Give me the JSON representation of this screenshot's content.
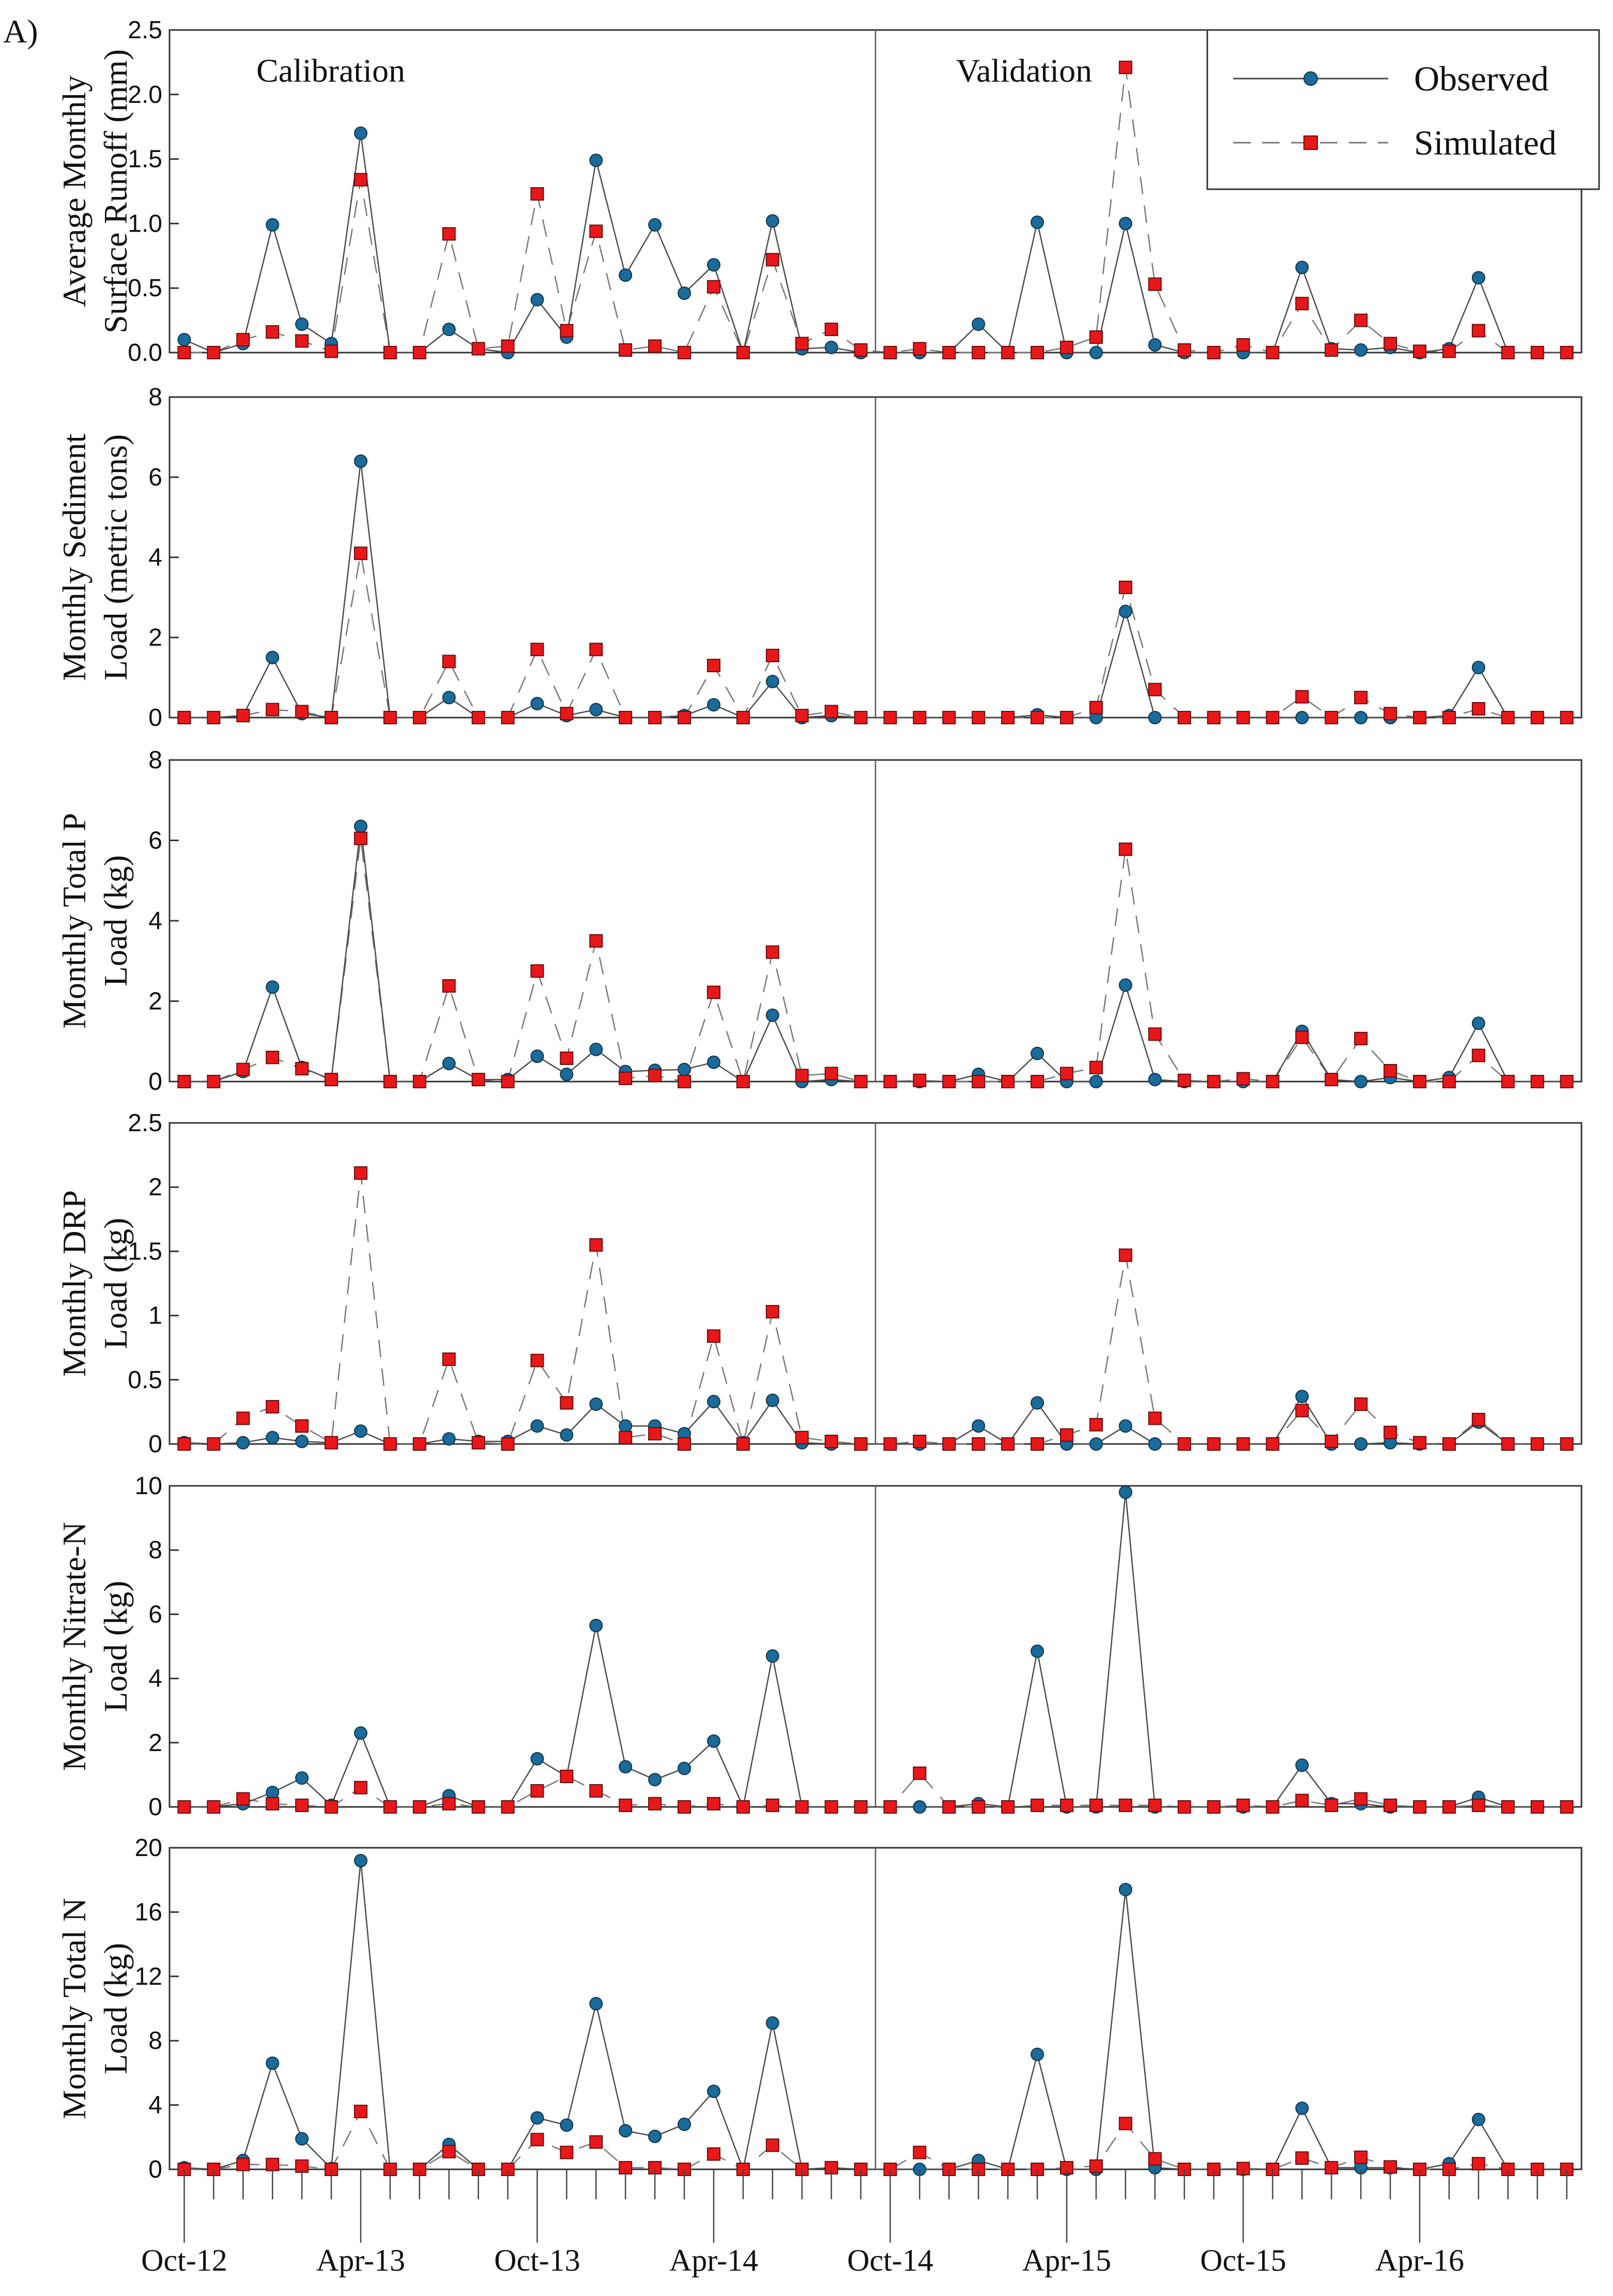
{
  "figure_label": "A)",
  "legend": {
    "observed": "Observed",
    "simulated": "Simulated"
  },
  "regions": {
    "calibration": "Calibration",
    "validation": "Validation"
  },
  "x_tick_labels": [
    "Oct-12",
    "Apr-13",
    "Oct-13",
    "Apr-14",
    "Oct-14",
    "Apr-15",
    "Oct-15",
    "Apr-16"
  ],
  "colors": {
    "observed": "#1a6a9a",
    "simulated": "#e8181a",
    "axis": "#333333"
  },
  "chart_data": [
    {
      "type": "line",
      "ylabel_lines": [
        "Average Monthly",
        "Surface Runoff (mm)"
      ],
      "ylim": [
        0,
        2.5
      ],
      "yticks": [
        "0.0",
        "0.5",
        "1.0",
        "1.5",
        "2.0",
        "2.5"
      ],
      "ytick_values": [
        0,
        0.5,
        1.0,
        1.5,
        2.0,
        2.5
      ],
      "series": [
        {
          "name": "Observed",
          "values": [
            0.1,
            0,
            0.07,
            0.99,
            0.22,
            0.07,
            1.7,
            0,
            0,
            0.18,
            0.03,
            0,
            0.41,
            0.12,
            1.49,
            0.6,
            0.99,
            0.46,
            0.68,
            0,
            1.02,
            0.03,
            0.04,
            0,
            0,
            0,
            0,
            0.22,
            0,
            1.01,
            0,
            0,
            1.0,
            0.06,
            0,
            0,
            0,
            0,
            0.66,
            0.03,
            0.02,
            0.04,
            0,
            0.03,
            0.58,
            0,
            0,
            0
          ]
        },
        {
          "name": "Simulated",
          "values": [
            0,
            0,
            0.1,
            0.16,
            0.09,
            0.01,
            1.34,
            0,
            0,
            0.92,
            0.03,
            0.05,
            1.23,
            0.17,
            0.94,
            0.02,
            0.05,
            0,
            0.51,
            0,
            0.72,
            0.07,
            0.18,
            0.02,
            0,
            0.03,
            0,
            0,
            0,
            0,
            0.04,
            0.12,
            2.21,
            0.53,
            0.02,
            0,
            0.06,
            0,
            0.38,
            0.02,
            0.25,
            0.07,
            0.01,
            0.01,
            0.17,
            0,
            0,
            0
          ]
        }
      ]
    },
    {
      "type": "line",
      "ylabel_lines": [
        "Monthly Sediment",
        "Load (metric tons)"
      ],
      "ylim": [
        0,
        8
      ],
      "yticks": [
        "0",
        "2",
        "4",
        "6",
        "8"
      ],
      "ytick_values": [
        0,
        2,
        4,
        6,
        8
      ],
      "series": [
        {
          "name": "Observed",
          "values": [
            0,
            0,
            0.05,
            1.5,
            0.1,
            0,
            6.4,
            0,
            0,
            0.5,
            0,
            0,
            0.35,
            0.05,
            0.2,
            0,
            0,
            0.05,
            0.32,
            0,
            0.9,
            0,
            0.05,
            0,
            0,
            0,
            0,
            0,
            0,
            0.07,
            0,
            0,
            2.65,
            0,
            0,
            0,
            0,
            0,
            0,
            0,
            0,
            0,
            0,
            0.05,
            1.25,
            0,
            0,
            0
          ]
        },
        {
          "name": "Simulated",
          "values": [
            0,
            0,
            0.05,
            0.2,
            0.15,
            0,
            4.1,
            0,
            0,
            1.4,
            0,
            0,
            1.7,
            0.1,
            1.7,
            0,
            0,
            0,
            1.3,
            0,
            1.55,
            0.05,
            0.15,
            0,
            0,
            0,
            0,
            0,
            0,
            0,
            0,
            0.25,
            3.25,
            0.7,
            0,
            0,
            0,
            0,
            0.52,
            0,
            0.5,
            0.1,
            0,
            0,
            0.22,
            0,
            0,
            0
          ]
        }
      ]
    },
    {
      "type": "line",
      "ylabel_lines": [
        "Monthly Total P",
        "Load (kg)"
      ],
      "ylim": [
        0,
        8
      ],
      "yticks": [
        "0",
        "2",
        "4",
        "6",
        "8"
      ],
      "ytick_values": [
        0,
        2,
        4,
        6,
        8
      ],
      "series": [
        {
          "name": "Observed",
          "values": [
            0,
            0,
            0.25,
            2.35,
            0.35,
            0.05,
            6.35,
            0,
            0,
            0.45,
            0.05,
            0.05,
            0.63,
            0.18,
            0.8,
            0.25,
            0.28,
            0.3,
            0.48,
            0,
            1.65,
            0,
            0.05,
            0,
            0,
            0,
            0,
            0.18,
            0,
            0.7,
            0,
            0,
            2.4,
            0.05,
            0,
            0,
            0,
            0,
            1.25,
            0.05,
            0,
            0.1,
            0,
            0.1,
            1.45,
            0,
            0,
            0
          ]
        },
        {
          "name": "Simulated",
          "values": [
            0,
            0,
            0.3,
            0.6,
            0.32,
            0.05,
            6.05,
            0,
            0,
            2.38,
            0.05,
            0,
            2.75,
            0.58,
            3.5,
            0.08,
            0.15,
            0,
            2.22,
            0,
            3.22,
            0.15,
            0.2,
            0,
            0,
            0.03,
            0,
            0,
            0,
            0,
            0.2,
            0.35,
            5.78,
            1.18,
            0.03,
            0,
            0.07,
            0,
            1.1,
            0.05,
            1.07,
            0.27,
            0,
            0,
            0.65,
            0,
            0,
            0
          ]
        }
      ]
    },
    {
      "type": "line",
      "ylabel_lines": [
        "Monthly DRP",
        "Load (kg)"
      ],
      "ylim": [
        0,
        2.5
      ],
      "yticks": [
        "0",
        "0.5",
        "1",
        "1.5",
        "2",
        "2.5"
      ],
      "ytick_values": [
        0,
        0.5,
        1,
        1.5,
        2,
        2.5
      ],
      "series": [
        {
          "name": "Observed",
          "values": [
            0.01,
            0,
            0.01,
            0.05,
            0.02,
            0.01,
            0.1,
            0,
            0,
            0.04,
            0.02,
            0.02,
            0.14,
            0.07,
            0.31,
            0.14,
            0.14,
            0.08,
            0.33,
            0.01,
            0.34,
            0.01,
            0,
            0,
            0,
            0,
            0,
            0.14,
            0,
            0.32,
            0,
            0,
            0.14,
            0,
            0,
            0,
            0,
            0,
            0.37,
            0,
            0,
            0.01,
            0,
            0,
            0.17,
            0,
            0,
            0
          ]
        },
        {
          "name": "Simulated",
          "values": [
            0,
            0,
            0.2,
            0.29,
            0.14,
            0.01,
            2.11,
            0,
            0,
            0.66,
            0.01,
            0,
            0.65,
            0.32,
            1.55,
            0.05,
            0.08,
            0,
            0.84,
            0,
            1.03,
            0.05,
            0.02,
            0,
            0,
            0.02,
            0,
            0,
            0,
            0,
            0.07,
            0.15,
            1.47,
            0.2,
            0,
            0,
            0,
            0,
            0.26,
            0.02,
            0.31,
            0.09,
            0.01,
            0,
            0.19,
            0,
            0,
            0
          ]
        }
      ]
    },
    {
      "type": "line",
      "ylabel_lines": [
        "Monthly Nitrate-N",
        "Load (kg)"
      ],
      "ylim": [
        0,
        10
      ],
      "yticks": [
        "0",
        "2",
        "4",
        "6",
        "8",
        "10"
      ],
      "ytick_values": [
        0,
        2,
        4,
        6,
        8,
        10
      ],
      "series": [
        {
          "name": "Observed",
          "values": [
            0,
            0,
            0.1,
            0.45,
            0.9,
            0.05,
            2.3,
            0,
            0,
            0.35,
            0,
            0,
            1.5,
            0.95,
            5.65,
            1.25,
            0.85,
            1.2,
            2.05,
            0,
            4.7,
            0,
            0,
            0,
            0,
            0,
            0,
            0.1,
            0,
            4.85,
            0,
            0,
            9.8,
            0,
            0,
            0,
            0,
            0,
            1.3,
            0.1,
            0.1,
            0,
            0,
            0,
            0.3,
            0,
            0,
            0
          ]
        },
        {
          "name": "Simulated",
          "values": [
            0,
            0,
            0.25,
            0.1,
            0.05,
            0,
            0.6,
            0,
            0,
            0.1,
            0,
            0,
            0.5,
            0.95,
            0.5,
            0.05,
            0.1,
            0,
            0.1,
            0,
            0.05,
            0,
            0,
            0,
            0,
            1.05,
            0,
            0,
            0,
            0.05,
            0.05,
            0.05,
            0.05,
            0.05,
            0,
            0,
            0.05,
            0,
            0.2,
            0.05,
            0.25,
            0.05,
            0,
            0,
            0.05,
            0,
            0,
            0
          ]
        }
      ]
    },
    {
      "type": "line",
      "ylabel_lines": [
        "Monthly Total N",
        "Load (kg)"
      ],
      "ylim": [
        0,
        20
      ],
      "yticks": [
        "0",
        "4",
        "8",
        "12",
        "16",
        "20"
      ],
      "ytick_values": [
        0,
        4,
        8,
        12,
        16,
        20
      ],
      "series": [
        {
          "name": "Observed",
          "values": [
            0.1,
            0,
            0.55,
            6.6,
            1.9,
            0.05,
            19.2,
            0,
            0,
            1.55,
            0,
            0,
            3.2,
            2.75,
            10.3,
            2.4,
            2.05,
            2.8,
            4.85,
            0,
            9.1,
            0,
            0.1,
            0,
            0,
            0,
            0,
            0.55,
            0,
            7.15,
            0,
            0,
            17.4,
            0.1,
            0,
            0,
            0,
            0,
            3.8,
            0.1,
            0.1,
            0.1,
            0,
            0.35,
            3.1,
            0,
            0,
            0
          ]
        },
        {
          "name": "Simulated",
          "values": [
            0,
            0,
            0.3,
            0.3,
            0.2,
            0,
            3.6,
            0,
            0,
            1.1,
            0,
            0,
            1.85,
            1.05,
            1.7,
            0.1,
            0.1,
            0,
            0.95,
            0,
            1.5,
            0,
            0.1,
            0,
            0,
            1.05,
            0,
            0,
            0,
            0,
            0.1,
            0.2,
            2.85,
            0.65,
            0,
            0,
            0.05,
            0,
            0.7,
            0.1,
            0.75,
            0.15,
            0,
            0,
            0.35,
            0,
            0,
            0
          ]
        }
      ]
    }
  ]
}
